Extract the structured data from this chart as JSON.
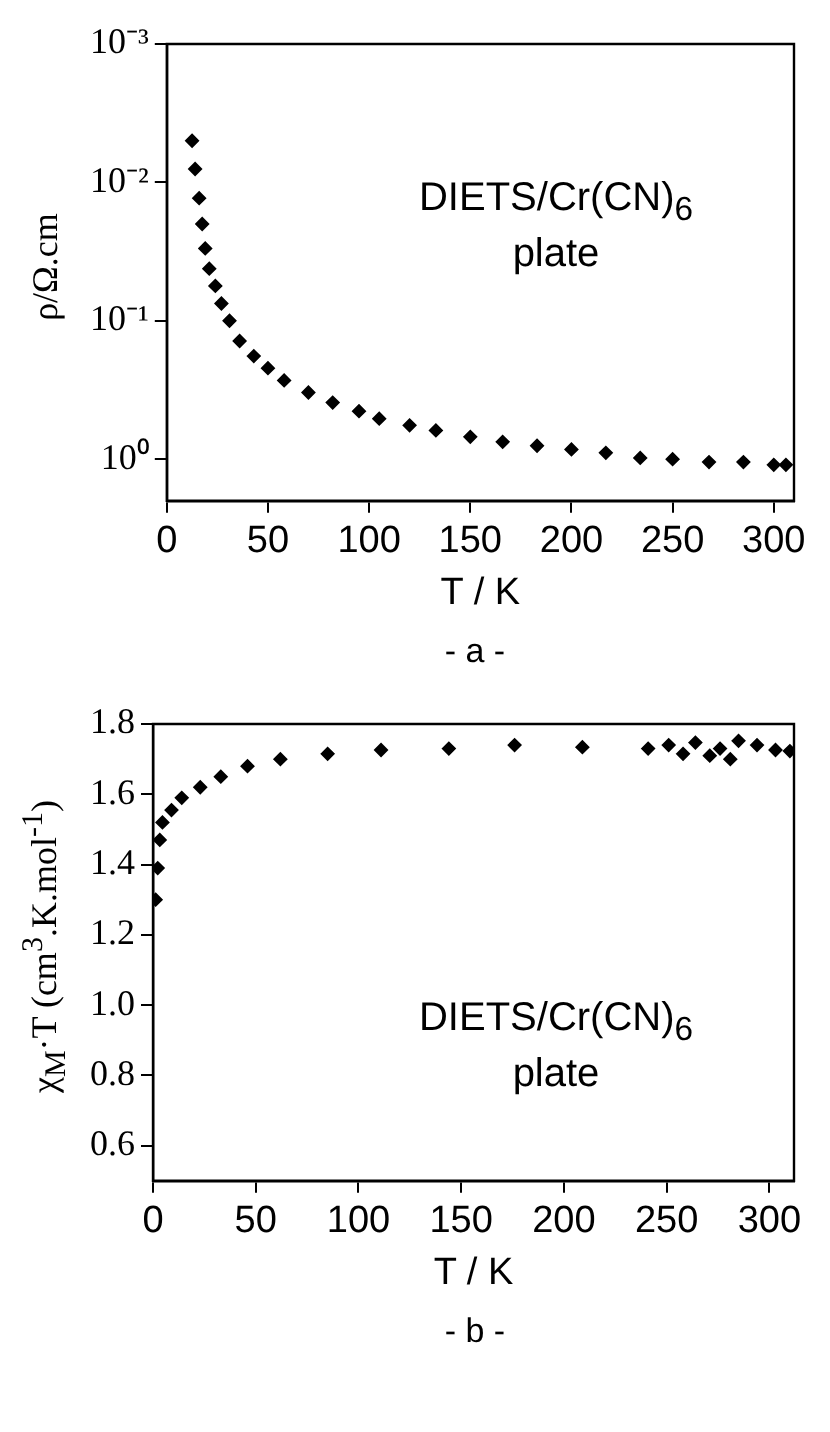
{
  "chart_data": [
    {
      "type": "scatter",
      "xlabel": "T / K",
      "ylabel": "ρ/Ω.cm",
      "log": "y",
      "marker": "diamond",
      "grid": false,
      "legend": false,
      "annotations": [
        "DIETS/Cr(CN)$_{6}$\nplate",
        "- a -"
      ],
      "xlim": [
        0,
        310
      ],
      "xticks": [
        0,
        50,
        100,
        150,
        200,
        250,
        300
      ],
      "ylim": [
        2,
        0.001
      ],
      "yticks": [
        {
          "value": 0.001,
          "label": "10⁻³"
        },
        {
          "value": 0.01,
          "label": "10⁻²"
        },
        {
          "value": 0.1,
          "label": "10⁻¹"
        },
        {
          "value": 1,
          "label": "10⁰"
        }
      ],
      "series": [
        {
          "color": "#000000",
          "x": [
            12.5,
            14,
            16,
            17.5,
            19,
            21,
            24,
            27,
            31,
            36,
            43,
            50,
            58,
            70,
            82,
            95,
            105,
            120,
            133,
            150,
            166,
            183,
            200,
            217,
            234,
            250,
            268,
            285,
            300,
            306
          ],
          "values": [
            0.005,
            0.008,
            0.013,
            0.02,
            0.03,
            0.042,
            0.056,
            0.075,
            0.1,
            0.14,
            0.18,
            0.22,
            0.27,
            0.33,
            0.39,
            0.45,
            0.51,
            0.57,
            0.62,
            0.69,
            0.75,
            0.8,
            0.85,
            0.9,
            0.98,
            1.0,
            1.05,
            1.05,
            1.1,
            1.1
          ]
        }
      ]
    },
    {
      "type": "scatter",
      "xlabel": "T / K",
      "ylabel": "χ$_{M}$·T (cm$^{3}$.K.mol$^{-1}$)",
      "marker": "diamond",
      "grid": false,
      "legend": false,
      "annotations": [
        "DIETS/Cr(CN)$_{6}$\nplate",
        "- b -"
      ],
      "xlim": [
        0,
        312
      ],
      "xticks": [
        0,
        50,
        100,
        150,
        200,
        250,
        300
      ],
      "ylim": [
        0.5,
        1.8
      ],
      "yticks": [
        0.6,
        0.8,
        {
          "value": 1,
          "label": "1.0"
        },
        1.2,
        1.4,
        1.6,
        1.8
      ],
      "series": [
        {
          "color": "#000000",
          "x": [
            1.3,
            2.3,
            3.3,
            4.6,
            9,
            14,
            23,
            33,
            46,
            62,
            85,
            111,
            144,
            176,
            209,
            241,
            251,
            258,
            264,
            271,
            276,
            281,
            285,
            294,
            303,
            310
          ],
          "values": [
            1.3,
            1.39,
            1.47,
            1.52,
            1.555,
            1.59,
            1.62,
            1.65,
            1.68,
            1.7,
            1.715,
            1.726,
            1.73,
            1.74,
            1.734,
            1.73,
            1.74,
            1.715,
            1.747,
            1.71,
            1.73,
            1.7,
            1.752,
            1.74,
            1.726,
            1.723
          ]
        }
      ]
    }
  ]
}
